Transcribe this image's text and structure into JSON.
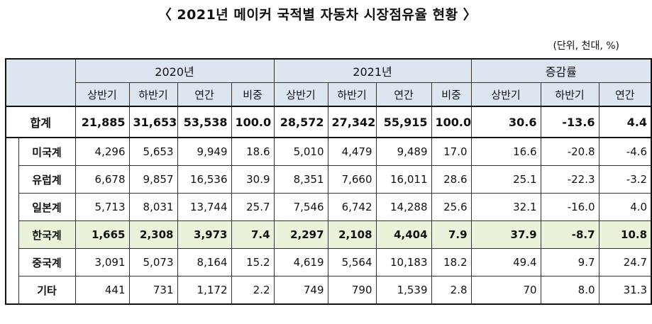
{
  "title": "〈 2021년 메이커 국적별 자동차 시장점유율 현황 〉",
  "unit": "(단위, 천대, %)",
  "header": {
    "groups": [
      "2020년",
      "2021년",
      "증감률"
    ],
    "sub2020": [
      "상반기",
      "하반기",
      "연간",
      "비중"
    ],
    "sub2021": [
      "상반기",
      "하반기",
      "연간",
      "비중"
    ],
    "subChange": [
      "상반기",
      "하반기",
      "연간"
    ]
  },
  "rows": [
    {
      "label": "합계",
      "values": [
        "21,885",
        "31,653",
        "53,538",
        "100.0",
        "28,572",
        "27,342",
        "55,915",
        "100.0",
        "30.6",
        "-13.6",
        "4.4"
      ]
    },
    {
      "label": "미국계",
      "values": [
        "4,296",
        "5,653",
        "9,949",
        "18.6",
        "5,010",
        "4,479",
        "9,489",
        "17.0",
        "16.6",
        "-20.8",
        "-4.6"
      ]
    },
    {
      "label": "유럽계",
      "values": [
        "6,678",
        "9,857",
        "16,536",
        "30.9",
        "8,351",
        "7,660",
        "16,011",
        "28.6",
        "25.1",
        "-22.3",
        "-3.2"
      ]
    },
    {
      "label": "일본계",
      "values": [
        "5,713",
        "8,031",
        "13,744",
        "25.7",
        "7,546",
        "6,742",
        "14,288",
        "25.6",
        "32.1",
        "-16.0",
        "4.0"
      ]
    },
    {
      "label": "한국계",
      "values": [
        "1,665",
        "2,308",
        "3,973",
        "7.4",
        "2,297",
        "2,108",
        "4,404",
        "7.9",
        "37.9",
        "-8.7",
        "10.8"
      ]
    },
    {
      "label": "중국계",
      "values": [
        "3,091",
        "5,073",
        "8,164",
        "15.2",
        "4,619",
        "5,564",
        "10,183",
        "18.2",
        "49.4",
        "9.7",
        "24.7"
      ]
    },
    {
      "label": "기타",
      "values": [
        "441",
        "731",
        "1,172",
        "2.2",
        "749",
        "790",
        "1,539",
        "2.8",
        "70",
        "8.0",
        "31.3"
      ]
    }
  ]
}
